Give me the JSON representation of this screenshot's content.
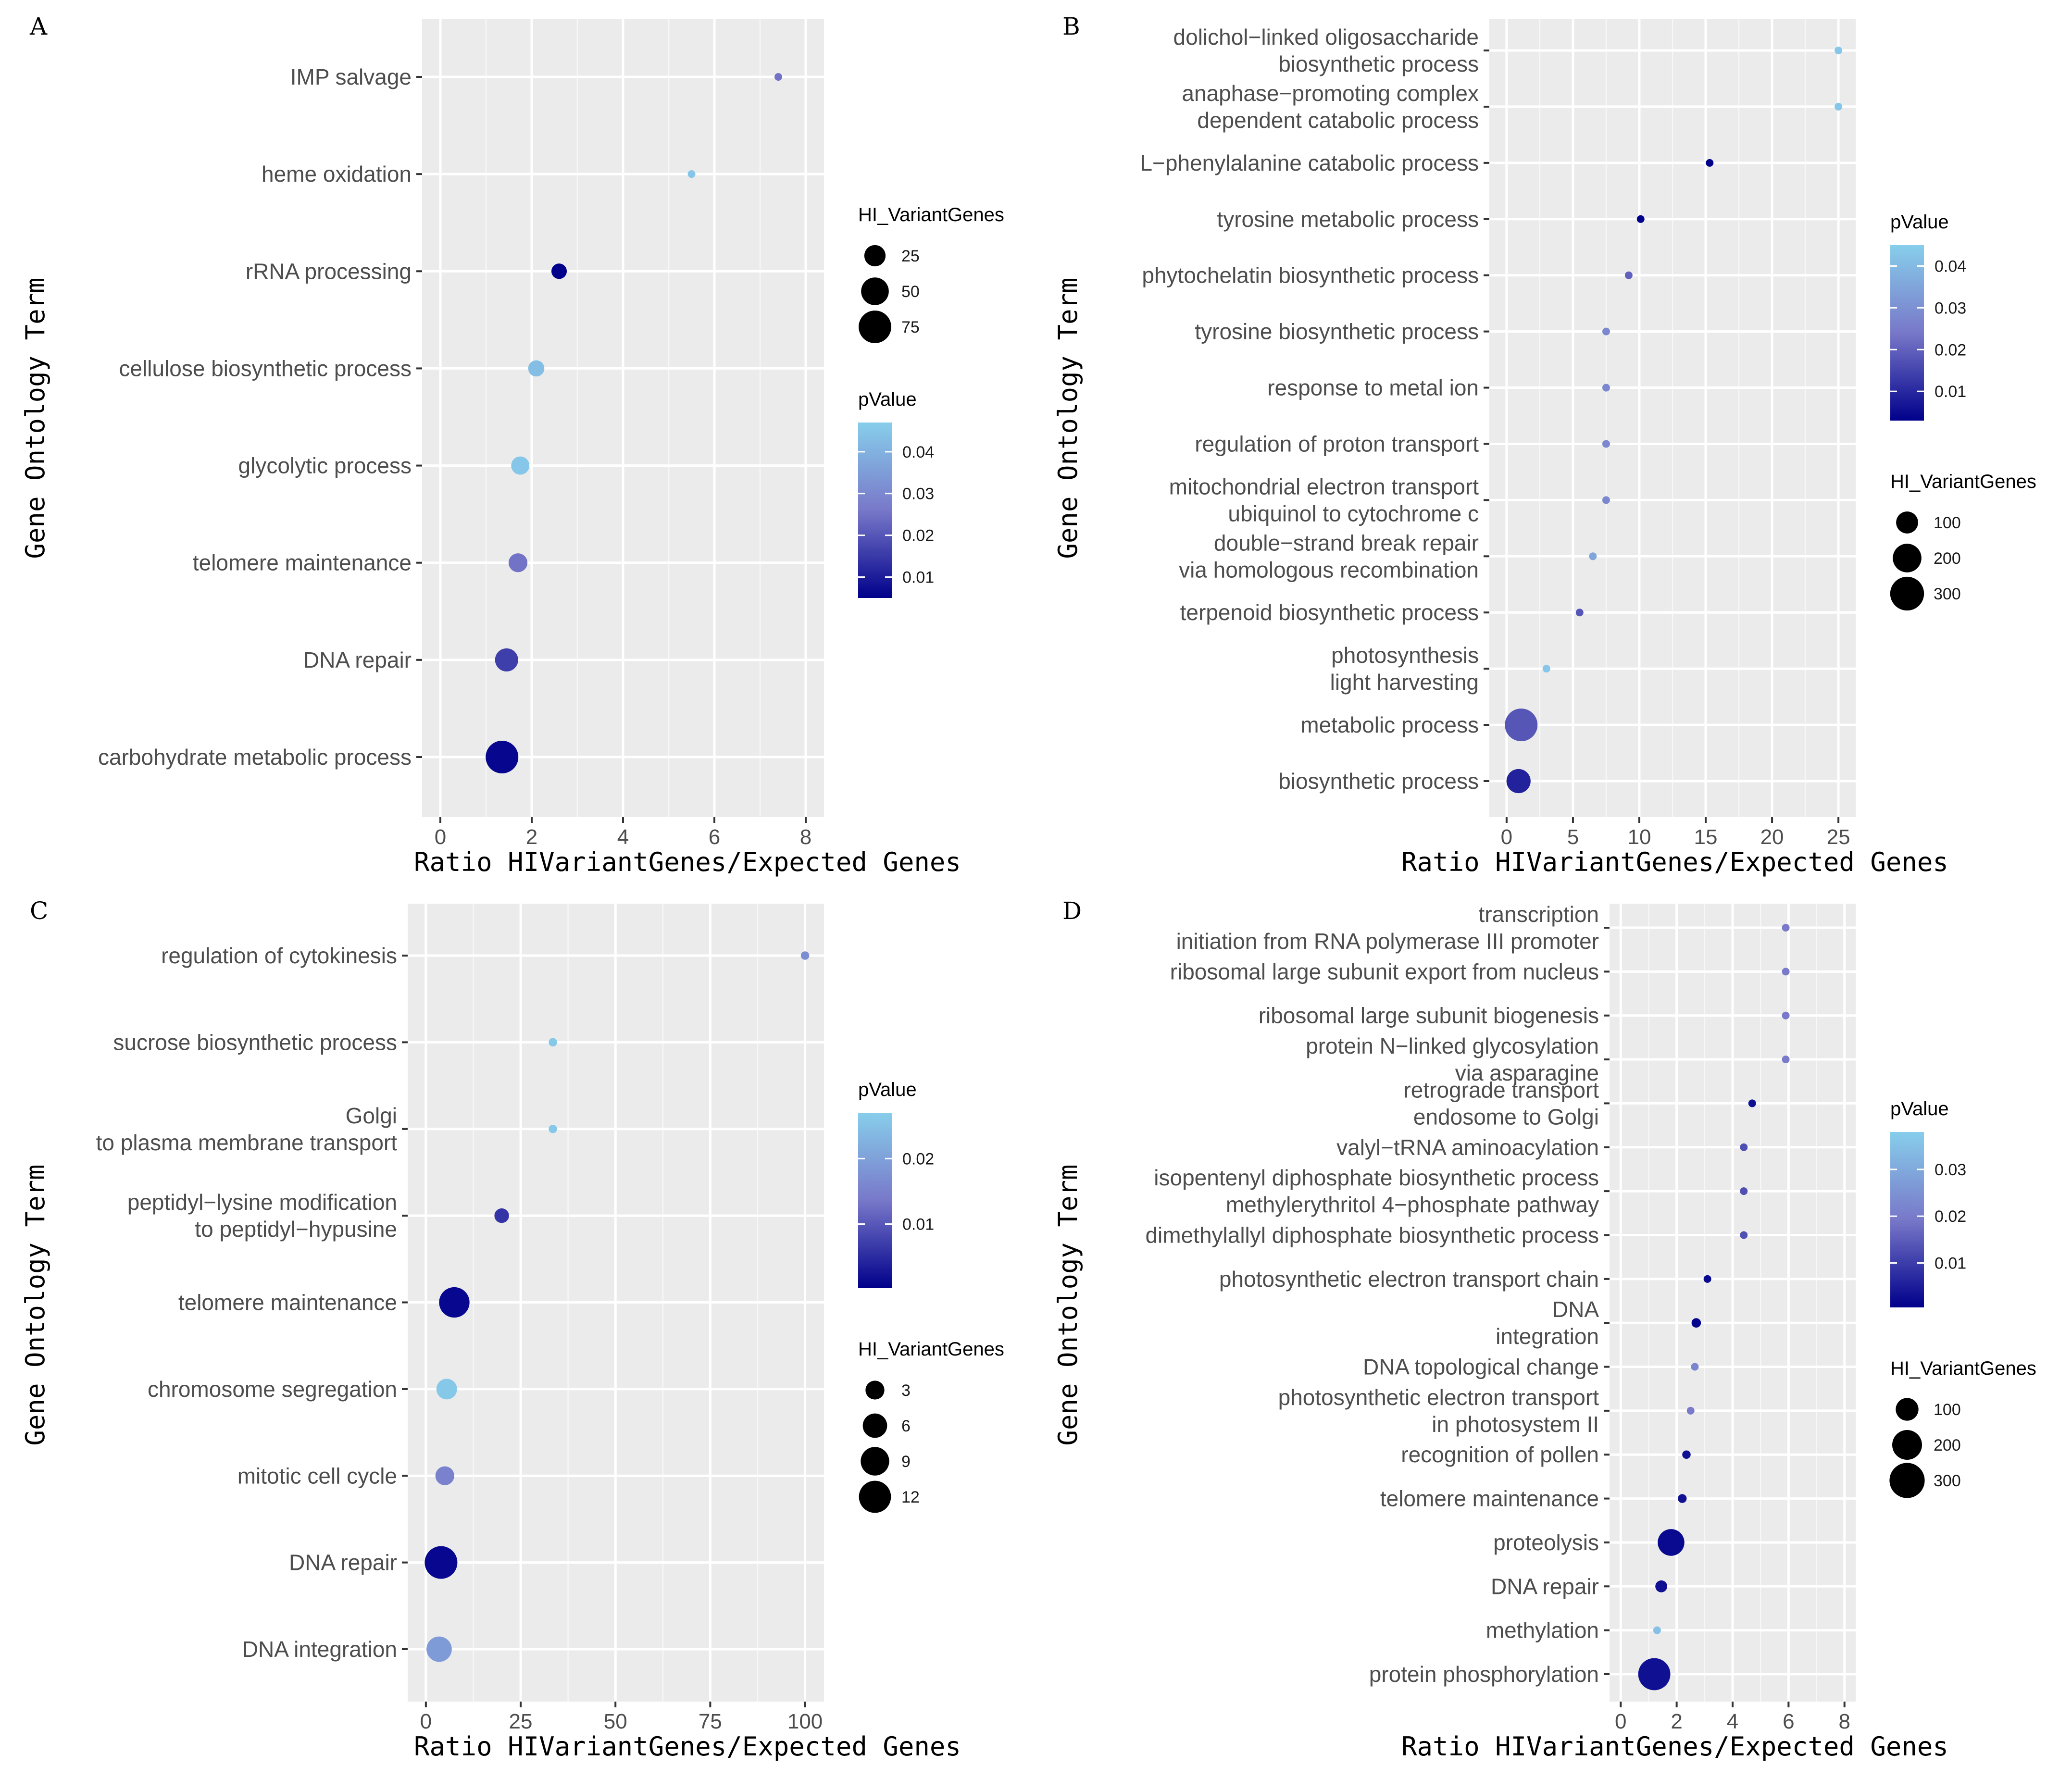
{
  "figure": {
    "colors": {
      "low": "#00008b",
      "mid": "#7878c9",
      "high": "#87ceeb",
      "panel_bg": "#ebebeb"
    }
  },
  "chart_data": [
    {
      "panel": "A",
      "type": "scatter",
      "xlabel": "Ratio HIVariantGenes/Expected Genes",
      "ylabel": "Gene Ontology Term",
      "xlim": [
        -0.4,
        8.4
      ],
      "xticks": [
        0,
        2,
        4,
        6,
        8
      ],
      "terms": [
        {
          "label": "IMP salvage",
          "x": 7.4,
          "size": 3,
          "p": 0.025
        },
        {
          "label": "heme oxidation",
          "x": 5.5,
          "size": 3,
          "p": 0.045
        },
        {
          "label": "rRNA processing",
          "x": 2.6,
          "size": 20,
          "p": 0.005
        },
        {
          "label": "cellulose biosynthetic process",
          "x": 2.1,
          "size": 22,
          "p": 0.043
        },
        {
          "label": "glycolytic process",
          "x": 1.75,
          "size": 28,
          "p": 0.045
        },
        {
          "label": "telomere maintenance",
          "x": 1.7,
          "size": 30,
          "p": 0.025
        },
        {
          "label": "DNA repair",
          "x": 1.45,
          "size": 45,
          "p": 0.016
        },
        {
          "label": "carbohydrate metabolic process",
          "x": 1.35,
          "size": 90,
          "p": 0.006
        }
      ],
      "size_legend": {
        "title": "HI_VariantGenes",
        "values": [
          25,
          50,
          75
        ],
        "max": 90
      },
      "color_legend": {
        "title": "pValue",
        "range": [
          0.005,
          0.047
        ],
        "ticks": [
          0.04,
          0.03,
          0.02,
          0.01
        ]
      },
      "legend_order": [
        "size",
        "color"
      ]
    },
    {
      "panel": "B",
      "type": "scatter",
      "xlabel": "Ratio HIVariantGenes/Expected Genes",
      "ylabel": "Gene Ontology Term",
      "xlim": [
        -1.3,
        26.3
      ],
      "xticks": [
        0,
        5,
        10,
        15,
        20,
        25
      ],
      "terms": [
        {
          "label": [
            "dolichol−linked oligosaccharide",
            "biosynthetic process"
          ],
          "x": 25,
          "size": 1,
          "p": 0.043
        },
        {
          "label": [
            "anaphase−promoting complex",
            "dependent catabolic process"
          ],
          "x": 25,
          "size": 1,
          "p": 0.043
        },
        {
          "label": "L−phenylalanine catabolic process",
          "x": 15.3,
          "size": 2,
          "p": 0.003
        },
        {
          "label": "tyrosine metabolic process",
          "x": 10.1,
          "size": 3,
          "p": 0.003
        },
        {
          "label": "phytochelatin biosynthetic process",
          "x": 9.2,
          "size": 3,
          "p": 0.02
        },
        {
          "label": "tyrosine biosynthetic process",
          "x": 7.5,
          "size": 4,
          "p": 0.028
        },
        {
          "label": "response to metal ion",
          "x": 7.5,
          "size": 4,
          "p": 0.028
        },
        {
          "label": "regulation of proton transport",
          "x": 7.5,
          "size": 4,
          "p": 0.028
        },
        {
          "label": [
            "mitochondrial electron transport",
            "ubiquinol to cytochrome c"
          ],
          "x": 7.5,
          "size": 4,
          "p": 0.028
        },
        {
          "label": [
            "double−strand break repair",
            "via homologous recombination"
          ],
          "x": 6.5,
          "size": 4,
          "p": 0.035
        },
        {
          "label": "terpenoid biosynthetic process",
          "x": 5.5,
          "size": 5,
          "p": 0.018
        },
        {
          "label": [
            "photosynthesis",
            "light harvesting"
          ],
          "x": 3,
          "size": 10,
          "p": 0.043
        },
        {
          "label": "metabolic process",
          "x": 1.1,
          "size": 330,
          "p": 0.018
        },
        {
          "label": "biosynthetic process",
          "x": 0.9,
          "size": 180,
          "p": 0.009
        }
      ],
      "size_legend": {
        "title": "HI_VariantGenes",
        "values": [
          100,
          200,
          300
        ],
        "max": 330
      },
      "color_legend": {
        "title": "pValue",
        "range": [
          0.003,
          0.045
        ],
        "ticks": [
          0.04,
          0.03,
          0.02,
          0.01
        ]
      },
      "legend_order": [
        "color",
        "size"
      ]
    },
    {
      "panel": "C",
      "type": "scatter",
      "xlabel": "Ratio HIVariantGenes/Expected Genes",
      "ylabel": "Gene Ontology Term",
      "xlim": [
        -4.8,
        105
      ],
      "xticks": [
        0,
        25,
        50,
        75,
        100
      ],
      "terms": [
        {
          "label": "regulation of cytokinesis",
          "x": 100,
          "size": 1,
          "p": 0.017
        },
        {
          "label": "sucrose biosynthetic process",
          "x": 33.5,
          "size": 1,
          "p": 0.026
        },
        {
          "label": [
            "Golgi",
            "to plasma membrane transport"
          ],
          "x": 33.5,
          "size": 1,
          "p": 0.026
        },
        {
          "label": [
            "peptidyl−lysine modification",
            "to peptidyl−hypusine"
          ],
          "x": 20,
          "size": 3,
          "p": 0.006
        },
        {
          "label": "telomere maintenance",
          "x": 7.5,
          "size": 13,
          "p": 0.001
        },
        {
          "label": "chromosome segregation",
          "x": 5.5,
          "size": 6,
          "p": 0.026
        },
        {
          "label": "mitotic cell cycle",
          "x": 5,
          "size": 5,
          "p": 0.015
        },
        {
          "label": "DNA repair",
          "x": 4,
          "size": 15,
          "p": 0.001
        },
        {
          "label": "DNA integration",
          "x": 3.5,
          "size": 9,
          "p": 0.019
        }
      ],
      "size_legend": {
        "title": "HI_VariantGenes",
        "values": [
          3,
          6,
          9,
          12
        ],
        "max": 15
      },
      "color_legend": {
        "title": "pValue",
        "range": [
          0.0002,
          0.027
        ],
        "ticks": [
          0.02,
          0.01
        ]
      },
      "legend_order": [
        "color",
        "size"
      ]
    },
    {
      "panel": "D",
      "type": "scatter",
      "xlabel": "Ratio HIVariantGenes/Expected Genes",
      "ylabel": "Gene Ontology Term",
      "xlim": [
        -0.4,
        8.4
      ],
      "xticks": [
        0,
        2,
        4,
        6,
        8
      ],
      "terms": [
        {
          "label": [
            "transcription",
            "initiation from RNA polymerase III promoter"
          ],
          "x": 5.9,
          "size": 4,
          "p": 0.02
        },
        {
          "label": "ribosomal large subunit export from nucleus",
          "x": 5.9,
          "size": 4,
          "p": 0.02
        },
        {
          "label": "ribosomal large subunit biogenesis",
          "x": 5.9,
          "size": 4,
          "p": 0.02
        },
        {
          "label": [
            "protein N−linked glycosylation",
            "via asparagine"
          ],
          "x": 5.9,
          "size": 4,
          "p": 0.02
        },
        {
          "label": [
            "retrograde transport",
            "endosome to Golgi"
          ],
          "x": 4.7,
          "size": 8,
          "p": 0.003
        },
        {
          "label": "valyl−tRNA aminoacylation",
          "x": 4.4,
          "size": 5,
          "p": 0.013
        },
        {
          "label": [
            "isopentenyl diphosphate biosynthetic process",
            "methylerythritol 4−phosphate pathway"
          ],
          "x": 4.4,
          "size": 5,
          "p": 0.013
        },
        {
          "label": "dimethylallyl diphosphate biosynthetic process",
          "x": 4.4,
          "size": 5,
          "p": 0.013
        },
        {
          "label": "photosynthetic electron transport chain",
          "x": 3.1,
          "size": 12,
          "p": 0.002
        },
        {
          "label": [
            "DNA",
            "integration"
          ],
          "x": 2.7,
          "size": 25,
          "p": 0.001
        },
        {
          "label": "DNA topological change",
          "x": 2.65,
          "size": 8,
          "p": 0.022
        },
        {
          "label": [
            "photosynthetic electron transport",
            "in photosystem II"
          ],
          "x": 2.5,
          "size": 8,
          "p": 0.02
        },
        {
          "label": "recognition of pollen",
          "x": 2.35,
          "size": 20,
          "p": 0.003
        },
        {
          "label": "telomere maintenance",
          "x": 2.2,
          "size": 22,
          "p": 0.003
        },
        {
          "label": "proteolysis",
          "x": 1.8,
          "size": 200,
          "p": 0.002
        },
        {
          "label": "DNA repair",
          "x": 1.45,
          "size": 40,
          "p": 0.003
        },
        {
          "label": "methylation",
          "x": 1.3,
          "size": 12,
          "p": 0.035
        },
        {
          "label": "protein phosphorylation",
          "x": 1.2,
          "size": 290,
          "p": 0.003
        }
      ],
      "size_legend": {
        "title": "HI_VariantGenes",
        "values": [
          100,
          200,
          300
        ],
        "max": 300
      },
      "color_legend": {
        "title": "pValue",
        "range": [
          0.0005,
          0.038
        ],
        "ticks": [
          0.03,
          0.02,
          0.01
        ]
      },
      "legend_order": [
        "color",
        "size"
      ]
    }
  ]
}
